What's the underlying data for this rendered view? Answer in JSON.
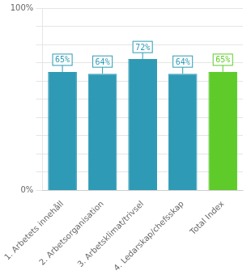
{
  "chart_data": {
    "type": "bar",
    "categories": [
      "1. Arbetets innehåll",
      "2. Arbetsorganisation",
      "3. Arbetsklimat/trivsel",
      "4. Ledarskap/chefsskap",
      "Total Index"
    ],
    "values": [
      65,
      64,
      72,
      64,
      65
    ],
    "value_labels": [
      "65%",
      "64%",
      "72%",
      "64%",
      "65%"
    ],
    "data_labels": true,
    "colors": [
      "#2e9ab5",
      "#2e9ab5",
      "#2e9ab5",
      "#2e9ab5",
      "#5ecb2a"
    ],
    "ylim": [
      0,
      100
    ],
    "yticks": [
      {
        "value": 0,
        "label": "0%"
      },
      {
        "value": 10,
        "label": null
      },
      {
        "value": 20,
        "label": null
      },
      {
        "value": 30,
        "label": null
      },
      {
        "value": 40,
        "label": null
      },
      {
        "value": 50,
        "label": null
      },
      {
        "value": 60,
        "label": null
      },
      {
        "value": 70,
        "label": null
      },
      {
        "value": 80,
        "label": null
      },
      {
        "value": 90,
        "label": null
      },
      {
        "value": 100,
        "label": "100%"
      }
    ],
    "grid": true
  }
}
